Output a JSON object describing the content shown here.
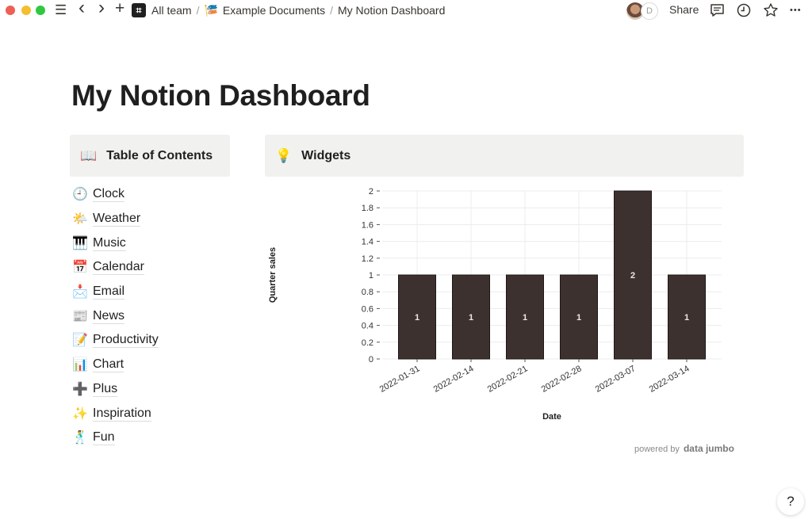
{
  "titlebar": {
    "workspace_logo": "⌗",
    "breadcrumbs": [
      {
        "emoji": "",
        "label": "All team"
      },
      {
        "emoji": "🎏",
        "label": "Example Documents"
      },
      {
        "emoji": "",
        "label": "My Notion Dashboard"
      }
    ],
    "avatar_initial": "D",
    "share_label": "Share",
    "icons": {
      "menu": "☰",
      "back": "‹",
      "forward": "›",
      "new": "+",
      "comments": "💬",
      "updates": "🕘",
      "favorite": "☆",
      "more": "•••"
    }
  },
  "page": {
    "title": "My Notion Dashboard"
  },
  "toc": {
    "heading_emoji": "📖",
    "heading": "Table of Contents",
    "items": [
      {
        "emoji": "🕘",
        "label": "Clock"
      },
      {
        "emoji": "🌤️",
        "label": "Weather"
      },
      {
        "emoji": "🎹",
        "label": "Music"
      },
      {
        "emoji": "📅",
        "label": "Calendar"
      },
      {
        "emoji": "📩",
        "label": "Email"
      },
      {
        "emoji": "📰",
        "label": "News"
      },
      {
        "emoji": "📝",
        "label": "Productivity"
      },
      {
        "emoji": "📊",
        "label": "Chart"
      },
      {
        "emoji": "➕",
        "label": "Plus"
      },
      {
        "emoji": "✨",
        "label": "Inspiration"
      },
      {
        "emoji": "🕺",
        "label": "Fun"
      }
    ]
  },
  "widgets": {
    "heading_emoji": "💡",
    "heading": "Widgets",
    "powered_by": "powered by",
    "powered_brand": "data jumbo"
  },
  "chart_data": {
    "type": "bar",
    "title": "",
    "xlabel": "Date",
    "ylabel": "Quarter sales",
    "categories": [
      "2022-01-31",
      "2022-02-14",
      "2022-02-21",
      "2022-02-28",
      "2022-03-07",
      "2022-03-14"
    ],
    "values": [
      1,
      1,
      1,
      1,
      2,
      1
    ],
    "ylim": [
      0,
      2
    ],
    "yticks": [
      "0",
      "0.2",
      "0.4",
      "0.6",
      "0.8",
      "1",
      "1.2",
      "1.4",
      "1.6",
      "1.8",
      "2"
    ],
    "grid": true,
    "bar_color": "#3d3130",
    "data_labels": true
  },
  "help": {
    "label": "?"
  }
}
